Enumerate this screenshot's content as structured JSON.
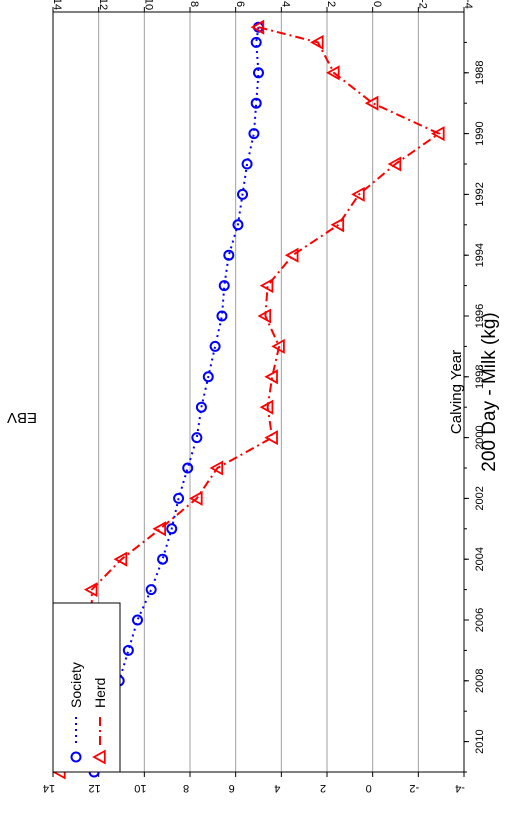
{
  "chart_data": {
    "type": "line",
    "title": "200 Day - Milk (kg)",
    "xlabel": "Calving Year",
    "ylabel": "EBV",
    "xlim": [
      1986,
      2011
    ],
    "ylim": [
      -4,
      14
    ],
    "x_ticks": [
      "1988",
      "1990",
      "1992",
      "1994",
      "1996",
      "1998",
      "2000",
      "2002",
      "2004",
      "2006",
      "2008",
      "2010"
    ],
    "y_ticks": [
      "-4",
      "-2",
      "0",
      "2",
      "4",
      "6",
      "8",
      "10",
      "12",
      "14"
    ],
    "grid": "horizontal",
    "legend_position": "top-left",
    "orientation": "rotated 90 degrees clockwise",
    "series": [
      {
        "name": "Society",
        "color": "#0000ff",
        "marker": "circle",
        "line_style": "dotted",
        "x": [
          1986.5,
          1987,
          1988,
          1989,
          1990,
          1991,
          1992,
          1993,
          1994,
          1995,
          1996,
          1997,
          1998,
          1999,
          2000,
          2001,
          2002,
          2003,
          2004,
          2005,
          2006,
          2007,
          2008,
          2009,
          2010,
          2011
        ],
        "y": [
          5.0,
          5.1,
          5.0,
          5.1,
          5.2,
          5.5,
          5.7,
          5.9,
          6.3,
          6.5,
          6.6,
          6.9,
          7.2,
          7.5,
          7.7,
          8.1,
          8.5,
          8.8,
          9.2,
          9.7,
          10.3,
          10.7,
          11.1,
          11.5,
          11.8,
          12.2
        ]
      },
      {
        "name": "Herd",
        "color": "#ff0000",
        "marker": "triangle",
        "line_style": "dash-dot",
        "x": [
          1986.5,
          1987,
          1988,
          1989,
          1990,
          1991,
          1992,
          1993,
          1994,
          1995,
          1996,
          1997,
          1998,
          1999,
          2000,
          2001,
          2002,
          2003,
          2004,
          2005,
          2006,
          2007,
          2008,
          2009,
          2010,
          2011
        ],
        "y": [
          5.0,
          2.4,
          1.7,
          0.0,
          -2.9,
          -1.0,
          0.6,
          1.5,
          3.5,
          4.6,
          4.7,
          4.1,
          4.4,
          4.6,
          4.4,
          6.8,
          7.7,
          9.3,
          11.0,
          12.3,
          12.3,
          12.4,
          12.3,
          13.0,
          13.5,
          13.7
        ]
      }
    ]
  }
}
